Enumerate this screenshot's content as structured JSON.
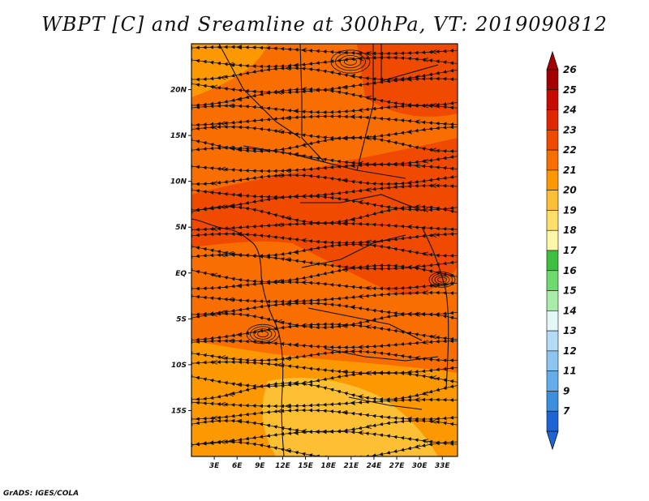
{
  "title": "WBPT [C] and Sreamline at 300hPa, VT: 2019090812",
  "credit": "GrADS: IGES/COLA",
  "map": {
    "lon_range": [
      0,
      35
    ],
    "lat_range": [
      -20,
      25
    ],
    "lon_ticks": [
      {
        "value": 3,
        "label": "3E"
      },
      {
        "value": 6,
        "label": "6E"
      },
      {
        "value": 9,
        "label": "9E"
      },
      {
        "value": 12,
        "label": "12E"
      },
      {
        "value": 15,
        "label": "15E"
      },
      {
        "value": 18,
        "label": "18E"
      },
      {
        "value": 21,
        "label": "21E"
      },
      {
        "value": 24,
        "label": "24E"
      },
      {
        "value": 27,
        "label": "27E"
      },
      {
        "value": 30,
        "label": "30E"
      },
      {
        "value": 33,
        "label": "33E"
      }
    ],
    "lat_ticks": [
      {
        "value": 20,
        "label": "20N"
      },
      {
        "value": 15,
        "label": "15N"
      },
      {
        "value": 10,
        "label": "10N"
      },
      {
        "value": 5,
        "label": "5N"
      },
      {
        "value": 0,
        "label": "EQ"
      },
      {
        "value": -5,
        "label": "5S"
      },
      {
        "value": -10,
        "label": "10S"
      },
      {
        "value": -15,
        "label": "15S"
      }
    ]
  },
  "colorbar": {
    "levels": [
      {
        "label": "26",
        "color": "#a50000"
      },
      {
        "label": "25",
        "color": "#c80a00"
      },
      {
        "label": "24",
        "color": "#e02800"
      },
      {
        "label": "23",
        "color": "#f04a00"
      },
      {
        "label": "22",
        "color": "#f86e00"
      },
      {
        "label": "21",
        "color": "#fc9800"
      },
      {
        "label": "20",
        "color": "#fdbf33"
      },
      {
        "label": "19",
        "color": "#fde06a"
      },
      {
        "label": "18",
        "color": "#fff7a8"
      },
      {
        "label": "17",
        "color": "#3fbf3f"
      },
      {
        "label": "16",
        "color": "#6fd86f"
      },
      {
        "label": "15",
        "color": "#a8eca8"
      },
      {
        "label": "14",
        "color": "#e3f7f7"
      },
      {
        "label": "13",
        "color": "#b4dcf6"
      },
      {
        "label": "12",
        "color": "#8cc6f0"
      },
      {
        "label": "11",
        "color": "#63aeea"
      },
      {
        "label": "9",
        "color": "#3e8ee0"
      },
      {
        "label": "7",
        "color": "#1e64d4"
      }
    ]
  },
  "field": {
    "bands": [
      {
        "name": "north",
        "level": 23
      },
      {
        "name": "central",
        "level": 24
      },
      {
        "name": "south",
        "level": 22
      },
      {
        "name": "southern-edge",
        "level": 21
      }
    ]
  }
}
